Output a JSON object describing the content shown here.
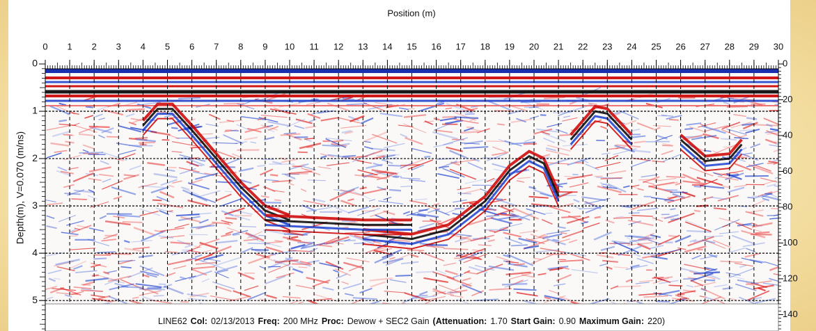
{
  "chart_data": {
    "type": "radargram",
    "title": "Position (m)",
    "ylabel": "Depth(m), V=0.070 (m/ns)",
    "xlim": [
      0,
      30
    ],
    "xticks": [
      0,
      1,
      2,
      3,
      4,
      5,
      6,
      7,
      8,
      9,
      10,
      11,
      12,
      13,
      14,
      15,
      16,
      17,
      18,
      19,
      20,
      21,
      22,
      23,
      24,
      25,
      26,
      27,
      28,
      29,
      30
    ],
    "ylim": [
      0,
      5.6
    ],
    "yticks": [
      0,
      1,
      2,
      3,
      4,
      5
    ],
    "y2lim": [
      0,
      148
    ],
    "y2ticks": [
      0,
      20,
      40,
      60,
      80,
      100,
      120,
      140
    ],
    "grid": true,
    "caption": [
      {
        "text": "LINE62",
        "bold": false
      },
      {
        "text": "Col:",
        "bold": true
      },
      {
        "text": "02/13/2013",
        "bold": false
      },
      {
        "text": "Freq:",
        "bold": true
      },
      {
        "text": "200 MHz",
        "bold": false
      },
      {
        "text": "Proc:",
        "bold": true
      },
      {
        "text": "Dewow + SEC2 Gain",
        "bold": false
      },
      {
        "text": "(Attenuation:",
        "bold": true
      },
      {
        "text": "1.70",
        "bold": false
      },
      {
        "text": "Start Gain:",
        "bold": true
      },
      {
        "text": "0.90",
        "bold": false
      },
      {
        "text": "Maximum Gain:",
        "bold": true
      },
      {
        "text": "220)",
        "bold": false
      }
    ]
  }
}
